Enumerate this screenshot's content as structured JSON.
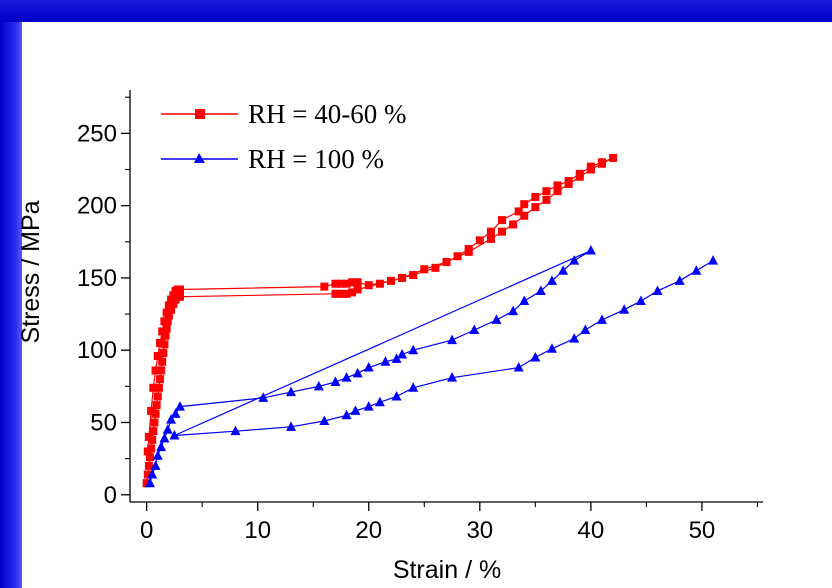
{
  "colors": {
    "frame": "#1010d8",
    "background": "#ffffff",
    "series_red": "#ff0000",
    "series_blue": "#0000ff"
  },
  "chart_data": {
    "type": "line",
    "title": "",
    "xlabel": "Strain / %",
    "ylabel": "Stress / MPa",
    "xlim": [
      -1.5,
      55.5
    ],
    "ylim": [
      -5,
      280
    ],
    "xticks": [
      0,
      10,
      20,
      30,
      40,
      50
    ],
    "yticks": [
      0,
      50,
      100,
      150,
      200,
      250
    ],
    "grid": false,
    "legend_position": "top-left",
    "series": [
      {
        "name": "RH = 40-60 %",
        "color": "#ff0000",
        "marker": "square",
        "points": [
          [
            0.0,
            8
          ],
          [
            0.1,
            14
          ],
          [
            0.2,
            20
          ],
          [
            0.3,
            26
          ],
          [
            0.4,
            32
          ],
          [
            0.5,
            38
          ],
          [
            0.6,
            44
          ],
          [
            0.7,
            50
          ],
          [
            0.8,
            56
          ],
          [
            0.9,
            62
          ],
          [
            1.0,
            68
          ],
          [
            1.1,
            74
          ],
          [
            1.2,
            80
          ],
          [
            1.3,
            86
          ],
          [
            1.4,
            92
          ],
          [
            1.5,
            98
          ],
          [
            1.6,
            104
          ],
          [
            1.7,
            110
          ],
          [
            1.8,
            115
          ],
          [
            1.9,
            120
          ],
          [
            2.0,
            124
          ],
          [
            2.2,
            128
          ],
          [
            2.4,
            132
          ],
          [
            2.6,
            135
          ],
          [
            2.8,
            137
          ],
          [
            3.0,
            137
          ],
          [
            17.0,
            139
          ],
          [
            17.5,
            139
          ],
          [
            18.0,
            139
          ],
          [
            18.5,
            140
          ],
          [
            19.0,
            142
          ],
          [
            21.0,
            146
          ],
          [
            23.0,
            150
          ],
          [
            25.0,
            156
          ],
          [
            27.0,
            161
          ],
          [
            29.0,
            168
          ],
          [
            31.0,
            177
          ],
          [
            32.0,
            182
          ],
          [
            33.0,
            187
          ],
          [
            34.0,
            193
          ],
          [
            35.0,
            199
          ],
          [
            36.0,
            204
          ],
          [
            37.0,
            210
          ],
          [
            38.0,
            215
          ],
          [
            39.0,
            220
          ],
          [
            40.0,
            225
          ],
          [
            41.0,
            229
          ],
          [
            42.0,
            233
          ],
          [
            41.0,
            230
          ],
          [
            40.0,
            227
          ],
          [
            39.0,
            222
          ],
          [
            38.0,
            217
          ],
          [
            37.0,
            214
          ],
          [
            36.0,
            210
          ],
          [
            35.0,
            206
          ],
          [
            34.0,
            201
          ],
          [
            33.5,
            196
          ],
          [
            32.0,
            190
          ],
          [
            31.0,
            182
          ],
          [
            30.0,
            176
          ],
          [
            29.0,
            170
          ],
          [
            28.0,
            165
          ],
          [
            27.0,
            161
          ],
          [
            26.0,
            157
          ],
          [
            24.0,
            152
          ],
          [
            22.0,
            148
          ],
          [
            20.0,
            145
          ],
          [
            19.0,
            147
          ],
          [
            18.5,
            147
          ],
          [
            18.0,
            146
          ],
          [
            17.5,
            146
          ],
          [
            17.0,
            146
          ],
          [
            16.0,
            144
          ],
          [
            3.0,
            142
          ],
          [
            2.8,
            142
          ],
          [
            2.6,
            141
          ],
          [
            2.4,
            138
          ],
          [
            2.2,
            135
          ],
          [
            2.0,
            131
          ],
          [
            1.8,
            126
          ],
          [
            1.6,
            120
          ],
          [
            1.4,
            113
          ],
          [
            1.2,
            105
          ],
          [
            1.0,
            96
          ],
          [
            0.8,
            86
          ],
          [
            0.6,
            74
          ],
          [
            0.4,
            58
          ],
          [
            0.2,
            40
          ],
          [
            0.1,
            30
          ]
        ]
      },
      {
        "name": "RH = 100 %",
        "color": "#0000ff",
        "marker": "triangle",
        "points": [
          [
            0.3,
            8
          ],
          [
            0.5,
            14
          ],
          [
            0.8,
            20
          ],
          [
            1.0,
            27
          ],
          [
            1.3,
            33
          ],
          [
            1.6,
            39
          ],
          [
            1.9,
            45
          ],
          [
            2.2,
            52
          ],
          [
            2.6,
            56
          ],
          [
            3.0,
            61
          ],
          [
            10.5,
            67
          ],
          [
            13.0,
            71
          ],
          [
            15.5,
            75
          ],
          [
            17.0,
            78
          ],
          [
            18.0,
            81
          ],
          [
            19.0,
            84
          ],
          [
            20.0,
            88
          ],
          [
            21.5,
            92
          ],
          [
            22.5,
            94
          ],
          [
            23.0,
            97
          ],
          [
            24.0,
            100
          ],
          [
            27.5,
            107
          ],
          [
            29.5,
            114
          ],
          [
            31.5,
            121
          ],
          [
            33.0,
            127
          ],
          [
            34.0,
            134
          ],
          [
            35.5,
            141
          ],
          [
            36.5,
            148
          ],
          [
            37.5,
            155
          ],
          [
            38.5,
            162
          ],
          [
            40.0,
            169
          ],
          [
            2.5,
            41
          ],
          [
            8.0,
            44
          ],
          [
            13.0,
            47
          ],
          [
            16.0,
            51
          ],
          [
            18.0,
            55
          ],
          [
            18.8,
            58
          ],
          [
            20.0,
            61
          ],
          [
            21.0,
            64
          ],
          [
            22.5,
            68
          ],
          [
            24.0,
            74
          ],
          [
            27.5,
            81
          ],
          [
            33.5,
            88
          ],
          [
            35.0,
            95
          ],
          [
            36.5,
            101
          ],
          [
            38.5,
            108
          ],
          [
            39.5,
            114
          ],
          [
            41.0,
            121
          ],
          [
            43.0,
            128
          ],
          [
            44.5,
            134
          ],
          [
            46.0,
            141
          ],
          [
            48.0,
            148
          ],
          [
            49.5,
            155
          ],
          [
            51.0,
            162
          ]
        ]
      }
    ]
  }
}
